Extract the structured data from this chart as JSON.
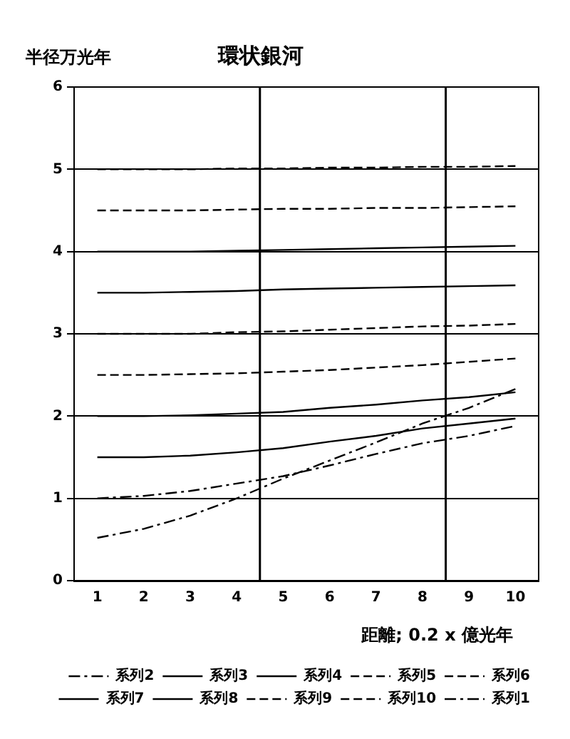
{
  "chart_data": {
    "type": "line",
    "title": "環状銀河",
    "ylabel": "半径万光年",
    "xlabel": "距離; 0.2 x 億光年",
    "x": [
      1,
      2,
      3,
      4,
      5,
      6,
      7,
      8,
      9,
      10
    ],
    "xlim": [
      0.5,
      10.5
    ],
    "xticks": [
      1,
      2,
      3,
      4,
      5,
      6,
      7,
      8,
      9,
      10
    ],
    "ylim": [
      0,
      6
    ],
    "yticks": [
      0,
      1,
      2,
      3,
      4,
      5,
      6
    ],
    "grid": "y",
    "legend": "bottom",
    "ref_lines": [
      {
        "axis": "x",
        "value": 4.5
      },
      {
        "axis": "x",
        "value": 8.5
      }
    ],
    "series": [
      {
        "name": "系列2",
        "color": "#000000",
        "line_style": "dashdot",
        "values": [
          1.0,
          1.03,
          1.09,
          1.18,
          1.27,
          1.4,
          1.54,
          1.67,
          1.76,
          1.88
        ]
      },
      {
        "name": "系列3",
        "color": "#000000",
        "line_style": "solid",
        "values": [
          1.5,
          1.5,
          1.52,
          1.56,
          1.61,
          1.69,
          1.76,
          1.85,
          1.91,
          1.97
        ]
      },
      {
        "name": "系列4",
        "color": "#000000",
        "line_style": "solid",
        "values": [
          2.0,
          2.0,
          2.01,
          2.03,
          2.05,
          2.1,
          2.14,
          2.19,
          2.23,
          2.29
        ]
      },
      {
        "name": "系列5",
        "color": "#000000",
        "line_style": "dashed",
        "values": [
          2.5,
          2.5,
          2.51,
          2.52,
          2.54,
          2.56,
          2.59,
          2.62,
          2.66,
          2.7
        ]
      },
      {
        "name": "系列6",
        "color": "#000000",
        "line_style": "dashed",
        "values": [
          3.0,
          3.0,
          3.0,
          3.02,
          3.03,
          3.05,
          3.07,
          3.09,
          3.1,
          3.12
        ]
      },
      {
        "name": "系列7",
        "color": "#000000",
        "line_style": "solid",
        "values": [
          3.5,
          3.5,
          3.51,
          3.52,
          3.54,
          3.55,
          3.56,
          3.57,
          3.58,
          3.59
        ]
      },
      {
        "name": "系列8",
        "color": "#000000",
        "line_style": "solid",
        "values": [
          4.0,
          4.0,
          4.0,
          4.01,
          4.02,
          4.03,
          4.04,
          4.05,
          4.06,
          4.07
        ]
      },
      {
        "name": "系列9",
        "color": "#000000",
        "line_style": "dashed",
        "values": [
          4.5,
          4.5,
          4.5,
          4.51,
          4.52,
          4.52,
          4.53,
          4.53,
          4.54,
          4.55
        ]
      },
      {
        "name": "系列10",
        "color": "#000000",
        "line_style": "dashed",
        "values": [
          5.0,
          5.0,
          5.0,
          5.01,
          5.01,
          5.02,
          5.02,
          5.03,
          5.03,
          5.04
        ]
      },
      {
        "name": "系列1",
        "color": "#000000",
        "line_style": "dashdot",
        "values": [
          0.52,
          0.63,
          0.79,
          1.0,
          1.24,
          1.46,
          1.68,
          1.91,
          2.1,
          2.33
        ]
      }
    ]
  }
}
